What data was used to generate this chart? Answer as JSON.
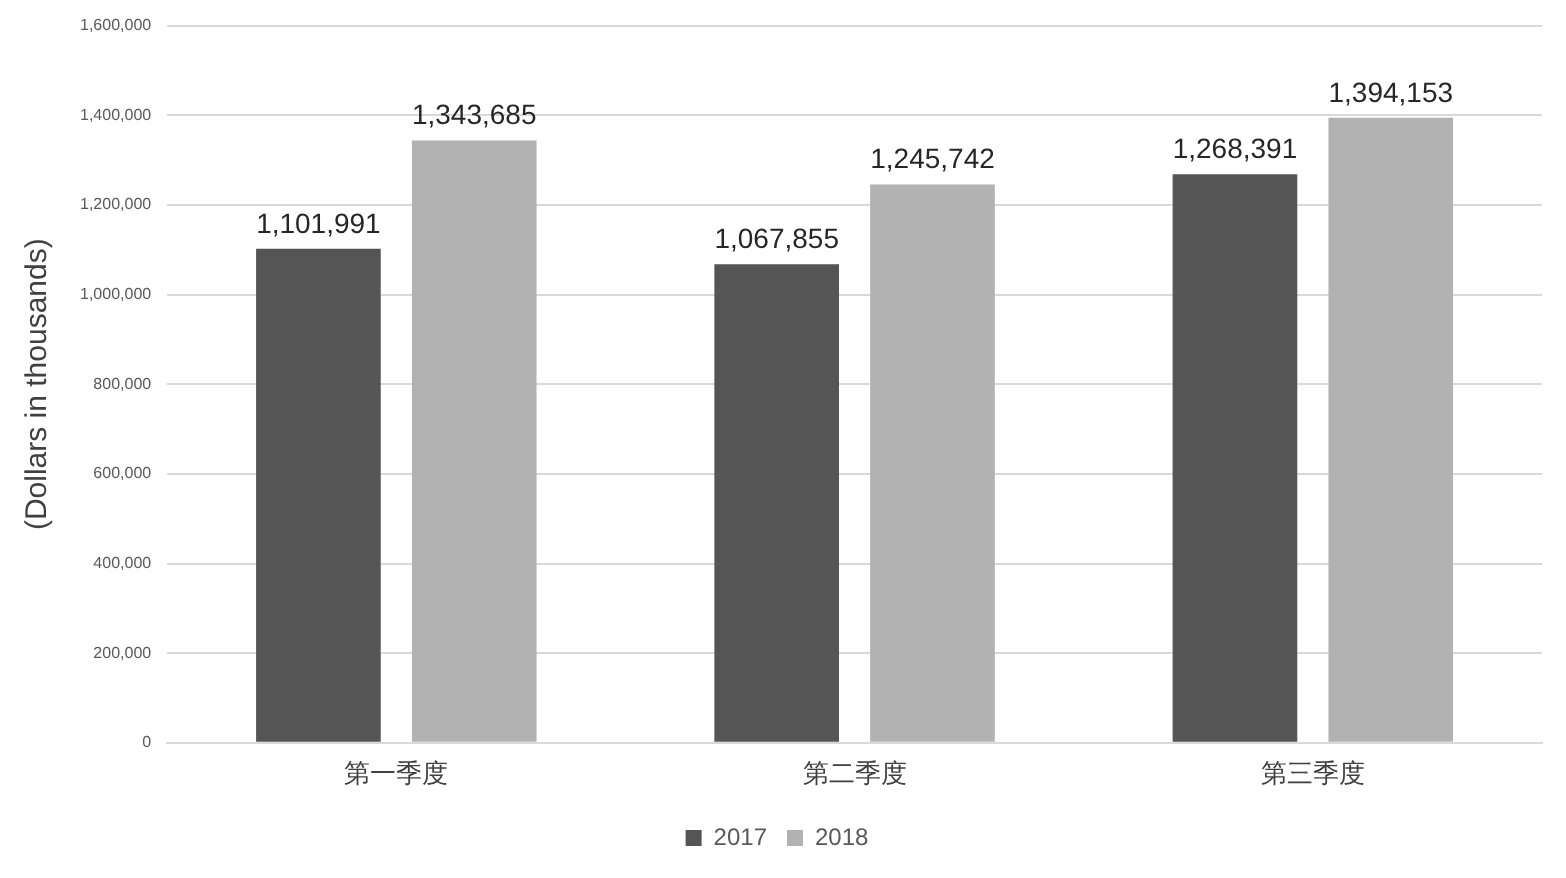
{
  "chart_data": {
    "type": "bar",
    "ylabel": "(Dollars in thousands)",
    "categories": [
      "第一季度",
      "第二季度",
      "第三季度"
    ],
    "series": [
      {
        "name": "2017",
        "color": "#555555",
        "values": [
          1101991,
          1067855,
          1268391
        ],
        "value_labels": [
          "1,101,991",
          "1,067,855",
          "1,268,391"
        ]
      },
      {
        "name": "2018",
        "color": "#b2b2b2",
        "values": [
          1343685,
          1245742,
          1394153
        ],
        "value_labels": [
          "1,343,685",
          "1,245,742",
          "1,394,153"
        ]
      }
    ],
    "ylim": [
      0,
      1600000
    ],
    "yticks": [
      {
        "value": 0,
        "label": "0"
      },
      {
        "value": 200000,
        "label": "200,000"
      },
      {
        "value": 400000,
        "label": "400,000"
      },
      {
        "value": 600000,
        "label": "600,000"
      },
      {
        "value": 800000,
        "label": "800,000"
      },
      {
        "value": 1000000,
        "label": "1,000,000"
      },
      {
        "value": 1200000,
        "label": "1,200,000"
      },
      {
        "value": 1400000,
        "label": "1,400,000"
      },
      {
        "value": 1600000,
        "label": "1,600,000"
      }
    ],
    "grid": "y",
    "legend": "bottom"
  }
}
